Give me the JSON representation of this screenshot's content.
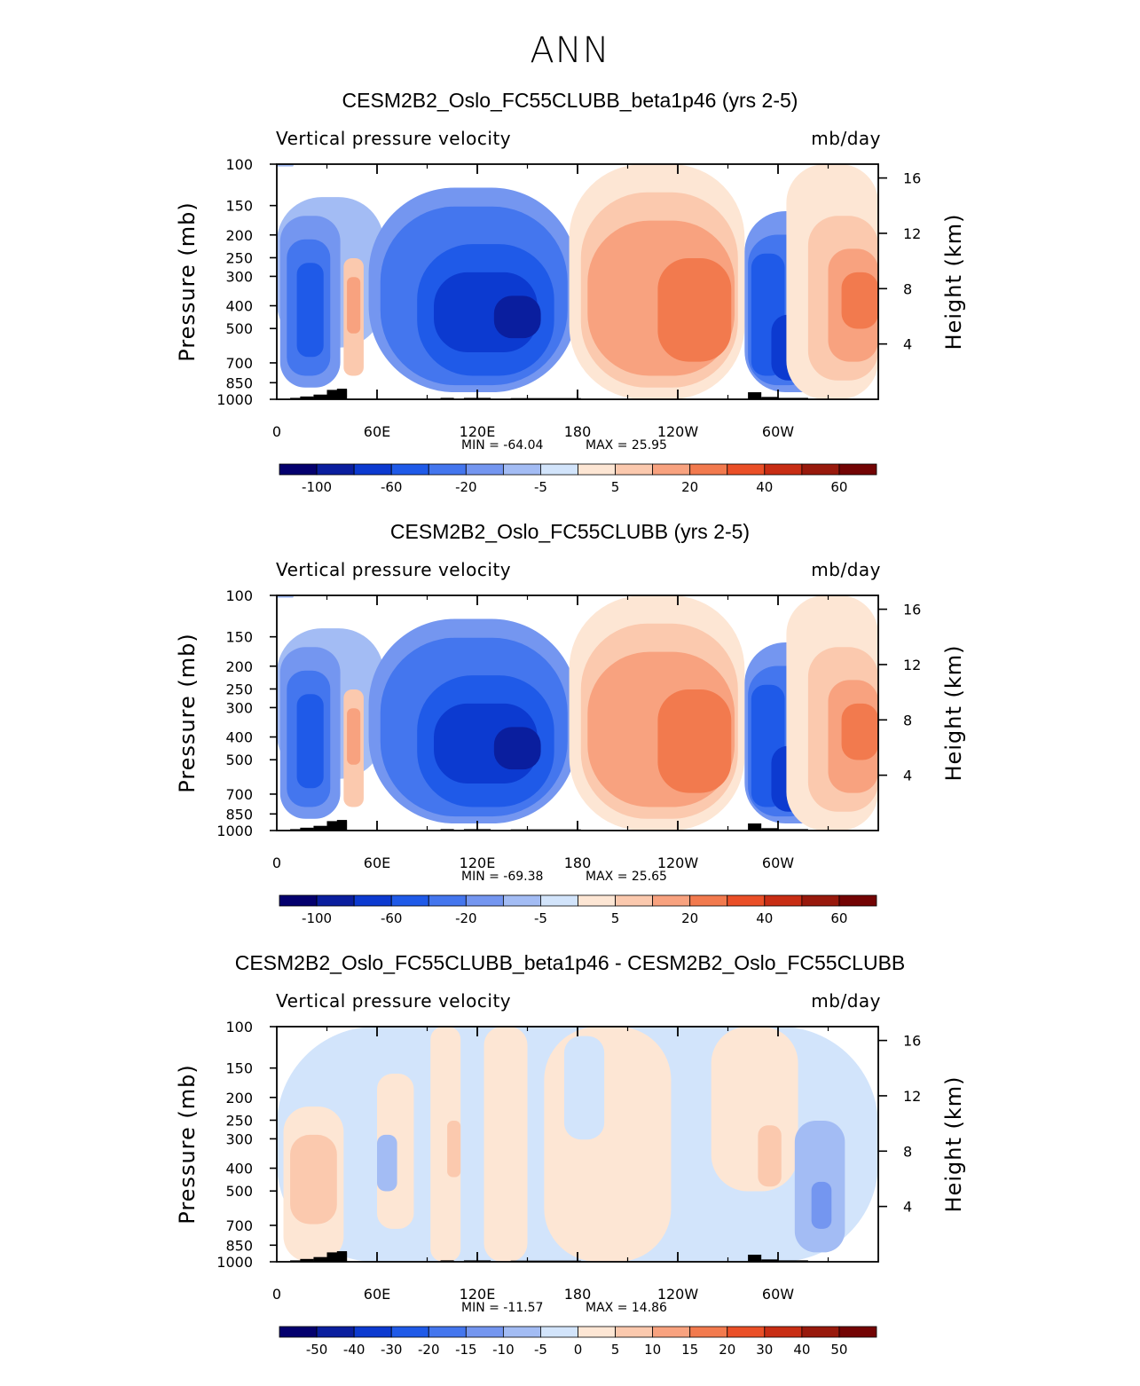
{
  "figure": {
    "title": "ANN"
  },
  "chart_data": [
    {
      "type": "heatmap",
      "title": "CESM2B2_Oslo_FC55CLUBB_beta1p46 (yrs 2-5)",
      "subtitle_left": "Vertical pressure velocity",
      "subtitle_right": "mb/day",
      "xlabel": "",
      "ylabel": "Pressure (mb)",
      "ylabel_right": "Height (km)",
      "x_ticks": [
        "0",
        "60E",
        "120E",
        "180",
        "120W",
        "60W"
      ],
      "y_ticks": [
        "100",
        "150",
        "200",
        "250",
        "300",
        "400",
        "500",
        "700",
        "850",
        "1000"
      ],
      "y2_ticks": [
        "16",
        "12",
        "8",
        "4"
      ],
      "min_label": "MIN = -64.04",
      "max_label": "MAX = 25.95",
      "min": -64.04,
      "max": 25.95,
      "colorbar_levels": [
        -100,
        -80,
        -60,
        -40,
        -20,
        -10,
        -5,
        0,
        5,
        10,
        20,
        30,
        40,
        50,
        60
      ],
      "colorbar_labels": [
        "-100",
        "-60",
        "-20",
        "-5",
        "5",
        "20",
        "40",
        "60"
      ]
    },
    {
      "type": "heatmap",
      "title": "CESM2B2_Oslo_FC55CLUBB (yrs 2-5)",
      "subtitle_left": "Vertical pressure velocity",
      "subtitle_right": "mb/day",
      "xlabel": "",
      "ylabel": "Pressure (mb)",
      "ylabel_right": "Height (km)",
      "x_ticks": [
        "0",
        "60E",
        "120E",
        "180",
        "120W",
        "60W"
      ],
      "y_ticks": [
        "100",
        "150",
        "200",
        "250",
        "300",
        "400",
        "500",
        "700",
        "850",
        "1000"
      ],
      "y2_ticks": [
        "16",
        "12",
        "8",
        "4"
      ],
      "min_label": "MIN = -69.38",
      "max_label": "MAX = 25.65",
      "min": -69.38,
      "max": 25.65,
      "colorbar_levels": [
        -100,
        -80,
        -60,
        -40,
        -20,
        -10,
        -5,
        0,
        5,
        10,
        20,
        30,
        40,
        50,
        60
      ],
      "colorbar_labels": [
        "-100",
        "-60",
        "-20",
        "-5",
        "5",
        "20",
        "40",
        "60"
      ]
    },
    {
      "type": "heatmap",
      "title": "CESM2B2_Oslo_FC55CLUBB_beta1p46 - CESM2B2_Oslo_FC55CLUBB",
      "subtitle_left": "Vertical pressure velocity",
      "subtitle_right": "mb/day",
      "xlabel": "",
      "ylabel": "Pressure (mb)",
      "ylabel_right": "Height (km)",
      "x_ticks": [
        "0",
        "60E",
        "120E",
        "180",
        "120W",
        "60W"
      ],
      "y_ticks": [
        "100",
        "150",
        "200",
        "250",
        "300",
        "400",
        "500",
        "700",
        "850",
        "1000"
      ],
      "y2_ticks": [
        "16",
        "12",
        "8",
        "4"
      ],
      "min_label": "MIN = -11.57",
      "max_label": "MAX = 14.86",
      "min": -11.57,
      "max": 14.86,
      "colorbar_levels": [
        -50,
        -40,
        -30,
        -20,
        -15,
        -10,
        -5,
        0,
        5,
        10,
        15,
        20,
        30,
        40,
        50
      ],
      "colorbar_labels": [
        "-50",
        "-40",
        "-30",
        "-20",
        "-15",
        "-10",
        "-5",
        "0",
        "5",
        "10",
        "15",
        "20",
        "30",
        "40",
        "50"
      ]
    }
  ],
  "colors": {
    "colorbar": [
      "#04006e",
      "#0a1e9e",
      "#0c3ad0",
      "#1f5ae8",
      "#4476ee",
      "#7496f0",
      "#a3bcf4",
      "#d2e4fb",
      "#fde6d4",
      "#fbc9ae",
      "#f8a27f",
      "#f27a4e",
      "#ea4f27",
      "#c82d14",
      "#98190c",
      "#730404"
    ],
    "terrain": "#000000"
  }
}
